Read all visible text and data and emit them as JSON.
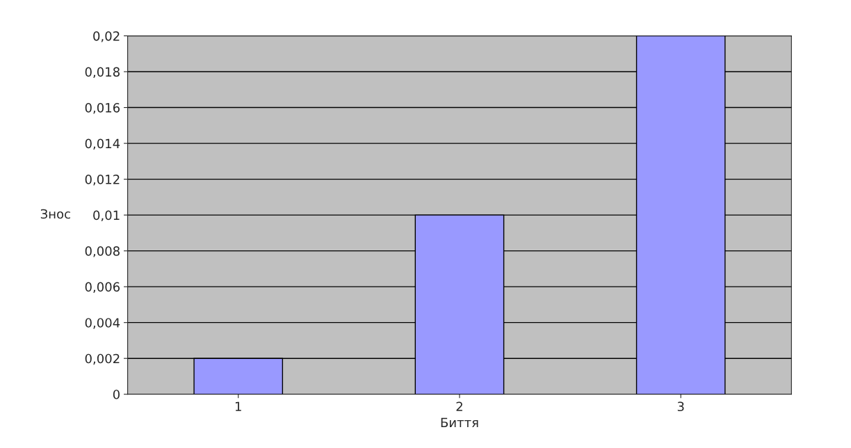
{
  "chart_data": {
    "type": "bar",
    "xlabel": "Биття",
    "ylabel": "Знос",
    "categories": [
      "1",
      "2",
      "3"
    ],
    "series": [
      {
        "color": "#9999ff",
        "values": [
          0.002,
          0.01,
          0.02
        ]
      }
    ],
    "ylim": [
      0,
      0.02
    ],
    "yticks": [
      0,
      {
        "value": 0.002,
        "label": "0,002"
      },
      {
        "value": 0.004,
        "label": "0,004"
      },
      {
        "value": 0.006,
        "label": "0,006"
      },
      {
        "value": 0.008,
        "label": "0,008"
      },
      {
        "value": 0.01,
        "label": "0,01"
      },
      {
        "value": 0.012,
        "label": "0,012"
      },
      {
        "value": 0.014,
        "label": "0,014"
      },
      {
        "value": 0.016,
        "label": "0,016"
      },
      {
        "value": 0.018,
        "label": "0,018"
      },
      {
        "value": 0.02,
        "label": "0,02"
      }
    ],
    "grid": "y"
  }
}
